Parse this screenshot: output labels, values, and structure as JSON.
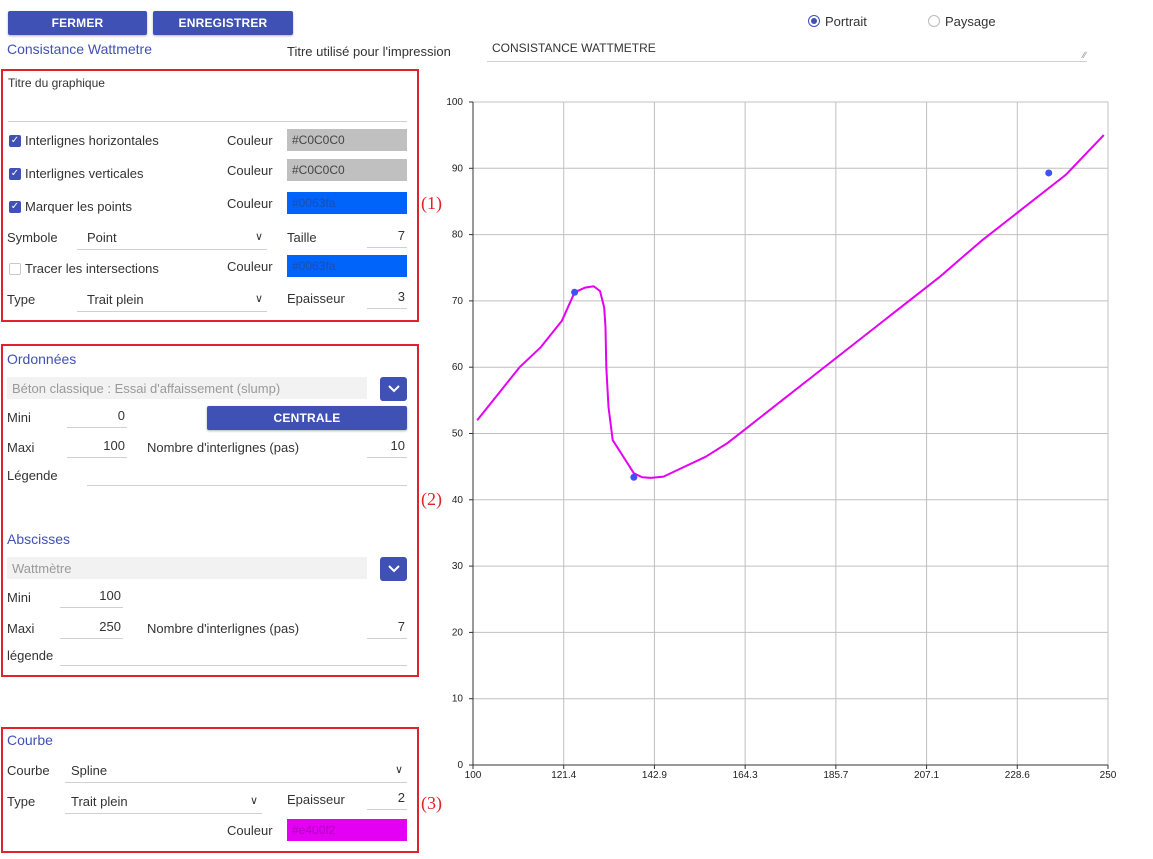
{
  "toolbar": {
    "close_label": "FERMER",
    "save_label": "ENREGISTRER"
  },
  "orientation": {
    "portrait_label": "Portrait",
    "landscape_label": "Paysage",
    "selected": "Portrait"
  },
  "header": {
    "name": "Consistance Wattmetre",
    "print_title_label": "Titre utilisé pour l'impression",
    "print_title_value": "CONSISTANCE WATTMETRE"
  },
  "graph_options": {
    "title_label": "Titre du graphique",
    "title_value": "",
    "h_grid_label": "Interlignes horizontales",
    "h_grid_checked": true,
    "h_grid_color_label": "Couleur",
    "h_grid_color": "#C0C0C0",
    "v_grid_label": "Interlignes verticales",
    "v_grid_checked": true,
    "v_grid_color_label": "Couleur",
    "v_grid_color": "#C0C0C0",
    "mark_points_label": "Marquer les points",
    "mark_points_checked": true,
    "mark_points_color_label": "Couleur",
    "mark_points_color": "#0063fa",
    "symbol_label": "Symbole",
    "symbol_value": "Point",
    "size_label": "Taille",
    "size_value": "7",
    "intersections_label": "Tracer les intersections",
    "intersections_checked": false,
    "intersections_color_label": "Couleur",
    "intersections_color": "#0063fa",
    "type_label": "Type",
    "type_value": "Trait plein",
    "thickness_label": "Epaisseur",
    "thickness_value": "3"
  },
  "ordinates": {
    "section_title": "Ordonnées",
    "source_value": "Béton classique : Essai d'affaissement (slump)",
    "min_label": "Mini",
    "min_value": "0",
    "central_button": "CENTRALE",
    "max_label": "Maxi",
    "max_value": "100",
    "steps_label": "Nombre d'interlignes (pas)",
    "steps_value": "10",
    "legend_label": "Légende",
    "legend_value": ""
  },
  "abscissas": {
    "section_title": "Abscisses",
    "source_value": "Wattmètre",
    "min_label": "Mini",
    "min_value": "100",
    "max_label": "Maxi",
    "max_value": "250",
    "steps_label": "Nombre d'interlignes (pas)",
    "steps_value": "7",
    "legend_label": "légende",
    "legend_value": ""
  },
  "curve": {
    "section_title": "Courbe",
    "curve_label": "Courbe",
    "curve_value": "Spline",
    "type_label": "Type",
    "type_value": "Trait plein",
    "thickness_label": "Epaisseur",
    "thickness_value": "2",
    "color_label": "Couleur",
    "color": "#e400f2"
  },
  "annotations": {
    "a1": "(1)",
    "a2": "(2)",
    "a3": "(3)"
  },
  "colors": {
    "accent": "#3f51b5",
    "annotation_red": "#e0222a",
    "grid": "#C0C0C0",
    "curve": "#e400f2",
    "points": "#3f51ff"
  },
  "chart_data": {
    "type": "line",
    "title": "",
    "xlabel": "",
    "ylabel": "",
    "xlim": [
      100,
      250
    ],
    "ylim": [
      0,
      100
    ],
    "x_ticks": [
      "100",
      "121.4",
      "142.9",
      "164.3",
      "185.7",
      "207.1",
      "228.6",
      "250"
    ],
    "y_ticks": [
      "0",
      "10",
      "20",
      "30",
      "40",
      "50",
      "60",
      "70",
      "80",
      "90",
      "100"
    ],
    "grid": true,
    "curve": {
      "x": [
        101,
        106,
        111,
        116,
        121,
        124,
        126.5,
        128.5,
        130,
        131,
        131.3,
        131.5,
        132,
        133,
        136,
        138,
        140,
        142,
        145,
        150,
        155,
        160,
        165,
        170,
        180,
        190,
        200,
        210,
        220,
        230,
        240,
        249
      ],
      "y": [
        52,
        56,
        60,
        63,
        67,
        71.3,
        72,
        72.2,
        71.5,
        69,
        66,
        60,
        54,
        49,
        46,
        44,
        43.4,
        43.3,
        43.5,
        45,
        46.5,
        48.5,
        51,
        53.5,
        58.5,
        63.5,
        68.5,
        73.5,
        79,
        84,
        89,
        95
      ]
    },
    "points": {
      "x": [
        124,
        138,
        236
      ],
      "y": [
        71.3,
        43.4,
        89.3
      ]
    }
  }
}
